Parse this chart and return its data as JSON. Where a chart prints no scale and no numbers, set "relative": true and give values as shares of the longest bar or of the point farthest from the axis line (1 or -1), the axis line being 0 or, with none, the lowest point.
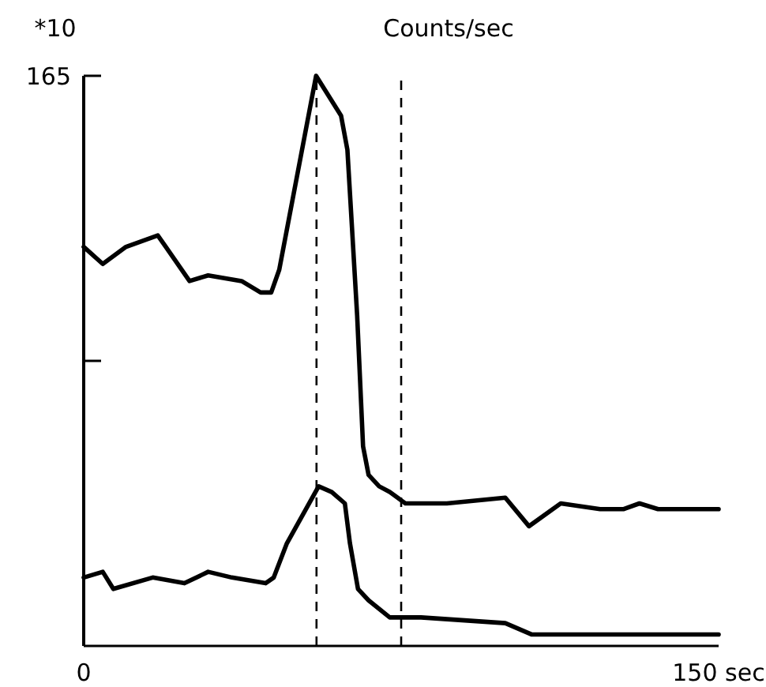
{
  "chart_data": {
    "type": "line",
    "title": "Counts/sec",
    "ylabel": "*10",
    "relative": true,
    "annotations": [
      "165"
    ],
    "xlim": [
      0,
      150
    ],
    "xticks": [
      0,
      {
        "value": 150,
        "label": "150 sec"
      }
    ],
    "grid": false,
    "line_style": "solid",
    "series": [
      {
        "color": "#000000",
        "x": [
          0,
          4.5,
          10,
          17.5,
          19.4,
          25,
          29.4,
          37.3,
          41.8,
          44.3,
          46.2,
          54.9,
          60.8,
          62.3,
          64.6,
          66,
          67.3,
          69.8,
          72.3,
          76,
          85.8,
          99.6,
          105.2,
          112.7,
          122,
          127.6,
          131.3,
          135.7,
          150
        ],
        "values": [
          0.7,
          0.67,
          0.7,
          0.72,
          0.7,
          0.64,
          0.65,
          0.64,
          0.62,
          0.62,
          0.66,
          1,
          0.93,
          0.87,
          0.58,
          0.35,
          0.3,
          0.28,
          0.27,
          0.25,
          0.25,
          0.26,
          0.21,
          0.25,
          0.24,
          0.24,
          0.25,
          0.24,
          0.24
        ]
      },
      {
        "color": "#000000",
        "x": [
          0,
          4.5,
          7,
          16.3,
          23.8,
          29.4,
          35,
          43,
          44.9,
          48,
          55.5,
          58.6,
          61.7,
          62.9,
          64.8,
          67.3,
          72.3,
          79.7,
          99.6,
          105.9,
          114.6,
          129.5,
          140.7,
          150
        ],
        "values": [
          0.12,
          0.13,
          0.1,
          0.12,
          0.11,
          0.13,
          0.12,
          0.11,
          0.12,
          0.18,
          0.28,
          0.27,
          0.25,
          0.18,
          0.1,
          0.08,
          0.05,
          0.05,
          0.04,
          0.02,
          0.02,
          0.02,
          0.02,
          0.02
        ]
      }
    ],
    "ref_lines": [
      {
        "axis": "x",
        "value": 55,
        "line_style": "dashed",
        "color": "#000000"
      },
      {
        "axis": "x",
        "value": 75,
        "line_style": "dashed",
        "color": "#000000"
      }
    ]
  }
}
